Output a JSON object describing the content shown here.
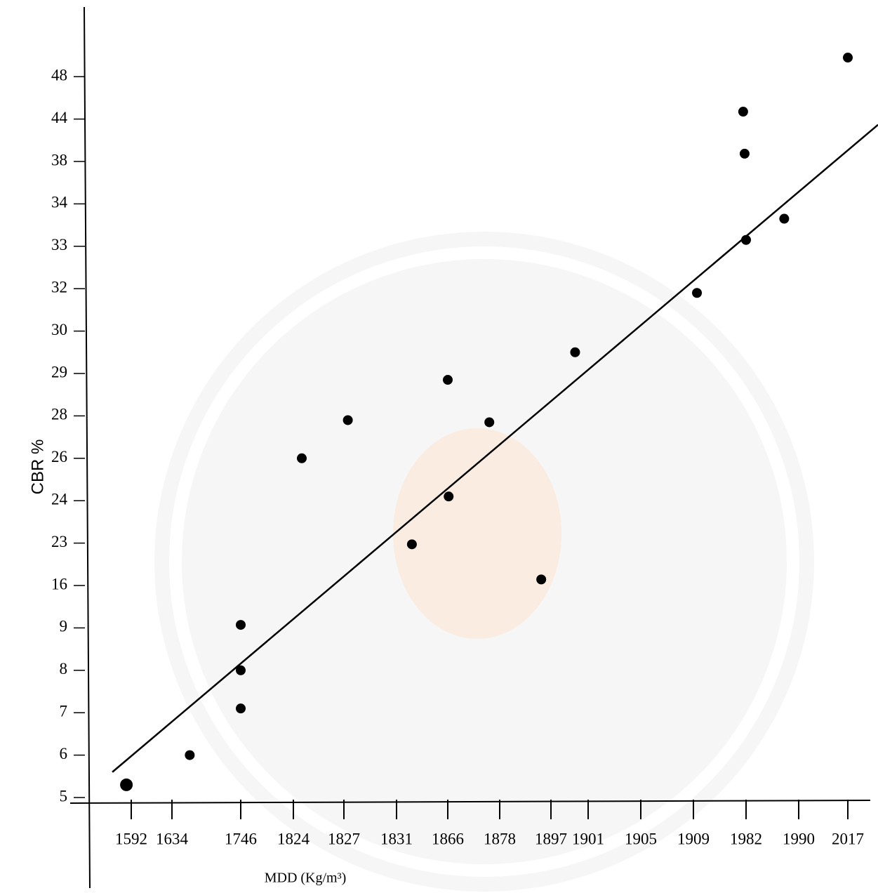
{
  "chart_data": {
    "type": "scatter",
    "ylabel": "CBR %",
    "xlabel": "MDD (Kg/m³)",
    "xticks": [
      1592,
      1634,
      1746,
      1824,
      1827,
      1831,
      1866,
      1878,
      1897,
      1901,
      1905,
      1909,
      1982,
      1990,
      2017
    ],
    "yticks": [
      5,
      6,
      7,
      8,
      9,
      16,
      23,
      24,
      26,
      28,
      29,
      30,
      32,
      33,
      34,
      38,
      44,
      48
    ],
    "xlim": [
      1529,
      2029
    ],
    "ylim": [
      2.9,
      54.5
    ],
    "points": {
      "color": "#000000",
      "x": [
        1587,
        1663,
        1746,
        1746,
        1746,
        1824.5,
        1827.3,
        1841.5,
        1866,
        1866.2,
        1875.6,
        1893.4,
        1899.6,
        1913.9,
        1978,
        1980,
        1982,
        1987.8,
        2017
      ],
      "y": [
        5.3,
        6,
        9.5,
        8,
        7.1,
        26,
        27.8,
        22.8,
        28.85,
        24.2,
        27.7,
        17,
        29.5,
        31.8,
        44.7,
        39.1,
        33.15,
        33.65,
        49.8
      ]
    },
    "trend_line": {
      "color": "#000000",
      "x": [
        1572.5,
        2033.6
      ],
      "y": [
        5.6,
        43.2
      ]
    }
  }
}
